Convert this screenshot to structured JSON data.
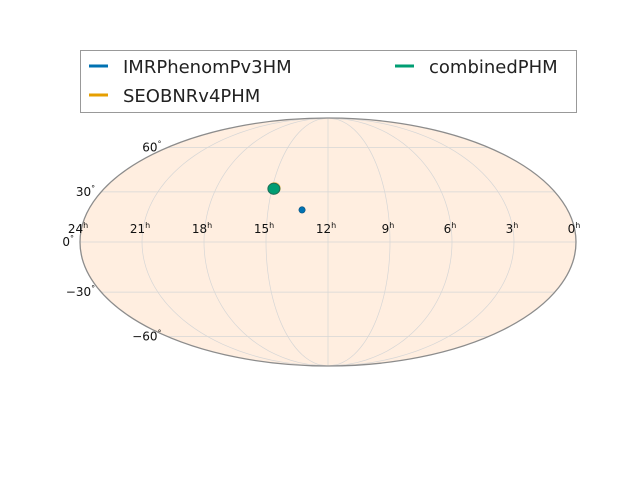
{
  "chart_data": {
    "type": "scatter",
    "projection": "mollweide",
    "series": [
      {
        "name": "IMRPhenomPv3HM",
        "color": "#0072b2"
      },
      {
        "name": "SEOBNRv4PHM",
        "color": "#e69f00"
      },
      {
        "name": "combinedPHM",
        "color": "#009e73"
      }
    ],
    "ra_ticks": [
      {
        "base": "24",
        "sup": "h"
      },
      {
        "base": "21",
        "sup": "h"
      },
      {
        "base": "18",
        "sup": "h"
      },
      {
        "base": "15",
        "sup": "h"
      },
      {
        "base": "12",
        "sup": "h"
      },
      {
        "base": "9",
        "sup": "h"
      },
      {
        "base": "6",
        "sup": "h"
      },
      {
        "base": "3",
        "sup": "h"
      },
      {
        "base": "0",
        "sup": "h"
      }
    ],
    "dec_ticks": [
      {
        "base": "60",
        "sup": "°"
      },
      {
        "base": "30",
        "sup": "°"
      },
      {
        "base": "0",
        "sup": "°"
      },
      {
        "base": "−30",
        "sup": "°"
      },
      {
        "base": "−60",
        "sup": "°"
      }
    ],
    "ra_range_hours": [
      24,
      0
    ],
    "dec_range_deg": [
      -90,
      90
    ],
    "grid": true,
    "legend_position": "top",
    "background_color": "#ffeee0",
    "sky_regions": [
      {
        "ra_hours": 14.9,
        "dec_deg": 32,
        "colors": [
          "#009e73",
          "#e69f00",
          "#0072b2"
        ]
      },
      {
        "ra_hours": 13.3,
        "dec_deg": 19,
        "colors": [
          "#0072b2"
        ]
      }
    ]
  }
}
